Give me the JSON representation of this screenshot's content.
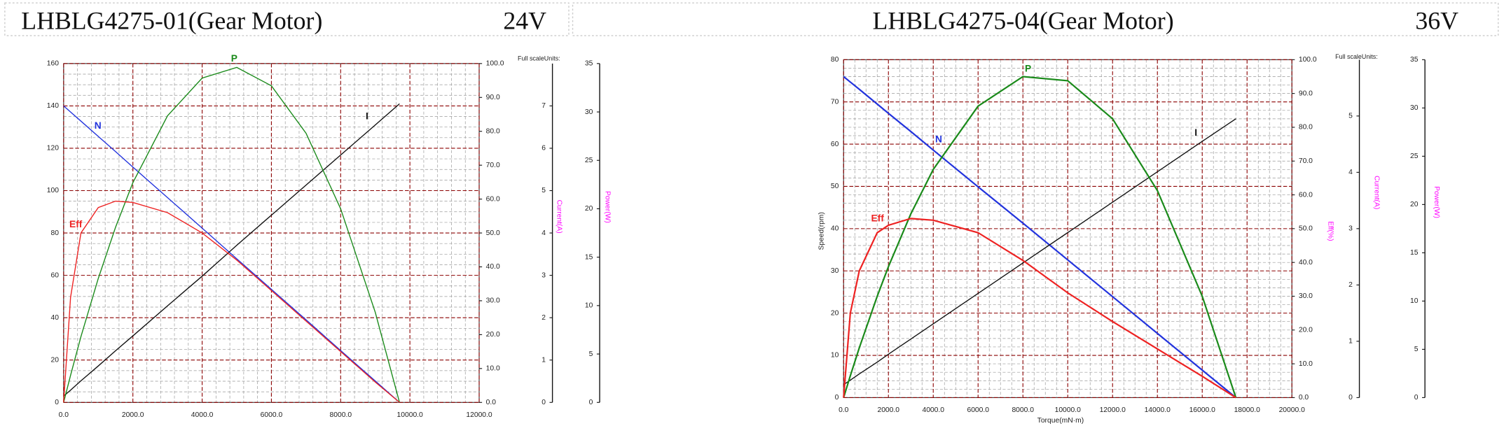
{
  "chart_data": [
    {
      "type": "line",
      "title": "LHBLG4275-01(Gear Motor)",
      "subtitle": "24V",
      "scale_note": "Full scaleUnits:",
      "x": [
        0,
        200,
        500,
        1000,
        1500,
        2000,
        3000,
        4000,
        5000,
        6000,
        7000,
        8000,
        9000,
        9700
      ],
      "xlim": [
        0,
        12000
      ],
      "xticks": [
        {
          "value": 0,
          "label": "0.0"
        },
        {
          "value": 2000,
          "label": "2000.0"
        },
        {
          "value": 4000,
          "label": "4000.0"
        },
        {
          "value": 6000,
          "label": "6000.0"
        },
        {
          "value": 8000,
          "label": "8000.0"
        },
        {
          "value": 10000,
          "label": "10000.0"
        },
        {
          "value": 12000,
          "label": "12000.0"
        }
      ],
      "ylim": [
        0,
        160
      ],
      "yticks": [
        0,
        20,
        40,
        60,
        80,
        100,
        120,
        140,
        160
      ],
      "y2lim": [
        0,
        100
      ],
      "y2ticks": [
        {
          "value": 0,
          "label": "0.0"
        },
        {
          "value": 10,
          "label": "10.0"
        },
        {
          "value": 20,
          "label": "20.0"
        },
        {
          "value": 30,
          "label": "30.0"
        },
        {
          "value": 40,
          "label": "40.0"
        },
        {
          "value": 50,
          "label": "50.0"
        },
        {
          "value": 60,
          "label": "60.0"
        },
        {
          "value": 70,
          "label": "70.0"
        },
        {
          "value": 80,
          "label": "80.0"
        },
        {
          "value": 90,
          "label": "90.0"
        },
        {
          "value": 100,
          "label": "100.0"
        }
      ],
      "y3label": "Current(A)",
      "y3lim": [
        0,
        8
      ],
      "y3ticks": [
        0,
        1,
        2,
        3,
        4,
        5,
        6,
        7
      ],
      "y4label": "Power(W)",
      "y4lim": [
        0,
        35
      ],
      "y4ticks": [
        0,
        5,
        10,
        15,
        20,
        25,
        30,
        35
      ],
      "grid": true,
      "series": [
        {
          "name": "N",
          "color": "#2233dd",
          "axis": "y",
          "values": [
            140,
            137.1,
            132.8,
            125.6,
            118.4,
            111.1,
            96.7,
            82.3,
            67.8,
            53.4,
            39.0,
            24.5,
            10.1,
            0
          ]
        },
        {
          "name": "I",
          "color": "#111111",
          "axis": "y3",
          "values": [
            0.15,
            0.29,
            0.51,
            0.86,
            1.22,
            1.57,
            2.28,
            2.98,
            3.71,
            4.42,
            5.13,
            5.84,
            6.55,
            7.05
          ]
        },
        {
          "name": "P",
          "color": "#1a8a1a",
          "axis": "y4",
          "values": [
            0,
            2.8,
            6.8,
            12.8,
            18.1,
            22.7,
            29.6,
            33.5,
            34.6,
            32.7,
            27.8,
            20.0,
            9.3,
            0
          ]
        },
        {
          "name": "Eff",
          "color": "#ee2222",
          "axis": "y2",
          "values": [
            0,
            31,
            50,
            57.5,
            59.4,
            59,
            56,
            50,
            42,
            33,
            24,
            15,
            6,
            0
          ]
        }
      ]
    },
    {
      "type": "line",
      "title": "LHBLG4275-04(Gear Motor)",
      "subtitle": "36V",
      "scale_note": "Full scaleUnits:",
      "x": [
        0,
        300,
        700,
        1500,
        2000,
        3000,
        4000,
        6000,
        8000,
        10000,
        12000,
        14000,
        16000,
        17500
      ],
      "xlabel": "Torque(mN·m)",
      "xlim": [
        0,
        20000
      ],
      "xticks": [
        {
          "value": 0,
          "label": "0.0"
        },
        {
          "value": 2000,
          "label": "2000.0"
        },
        {
          "value": 4000,
          "label": "4000.0"
        },
        {
          "value": 6000,
          "label": "6000.0"
        },
        {
          "value": 8000,
          "label": "8000.0"
        },
        {
          "value": 10000,
          "label": "10000.0"
        },
        {
          "value": 12000,
          "label": "12000.0"
        },
        {
          "value": 14000,
          "label": "14000.0"
        },
        {
          "value": 16000,
          "label": "16000.0"
        },
        {
          "value": 18000,
          "label": "18000.0"
        },
        {
          "value": 20000,
          "label": "20000.0"
        }
      ],
      "ylabel": "Speed(rpm)",
      "ylim": [
        0,
        80
      ],
      "yticks": [
        0,
        10,
        20,
        30,
        40,
        50,
        60,
        70,
        80
      ],
      "y2label": "Eff(%)",
      "y2lim": [
        0,
        100
      ],
      "y2ticks": [
        {
          "value": 0,
          "label": "0.0"
        },
        {
          "value": 10,
          "label": "10.0"
        },
        {
          "value": 20,
          "label": "20.0"
        },
        {
          "value": 30,
          "label": "30.0"
        },
        {
          "value": 40,
          "label": "40.0"
        },
        {
          "value": 50,
          "label": "50.0"
        },
        {
          "value": 60,
          "label": "60.0"
        },
        {
          "value": 70,
          "label": "70.0"
        },
        {
          "value": 80,
          "label": "80.0"
        },
        {
          "value": 90,
          "label": "90.0"
        },
        {
          "value": 100,
          "label": "100.0"
        }
      ],
      "y3label": "Current(A)",
      "y3lim": [
        0,
        6
      ],
      "y3ticks": [
        0,
        1,
        2,
        3,
        4,
        5
      ],
      "y4label": "Power(W)",
      "y4lim": [
        0,
        35
      ],
      "y4ticks": [
        0,
        5,
        10,
        15,
        20,
        25,
        30,
        35
      ],
      "grid": true,
      "series": [
        {
          "name": "N",
          "color": "#2233dd",
          "axis": "y",
          "values": [
            76,
            74.7,
            73.0,
            69.5,
            67.3,
            63.0,
            58.6,
            49.9,
            41.3,
            32.6,
            23.9,
            15.2,
            6.5,
            0
          ]
        },
        {
          "name": "I",
          "color": "#111111",
          "axis": "y3",
          "values": [
            0.23,
            0.31,
            0.42,
            0.63,
            0.77,
            1.04,
            1.31,
            1.85,
            2.39,
            2.93,
            3.47,
            4.01,
            4.55,
            4.95
          ]
        },
        {
          "name": "P",
          "color": "#1a8a1a",
          "axis": "y4",
          "values": [
            0,
            2.26,
            5.15,
            10.5,
            13.56,
            19.03,
            23.63,
            30.19,
            33.25,
            32.82,
            28.88,
            21.44,
            10.5,
            0
          ]
        },
        {
          "name": "Eff",
          "color": "#ee2222",
          "axis": "y2",
          "values": [
            0,
            25,
            37.5,
            48.8,
            51,
            53,
            52.5,
            48.8,
            40.6,
            31,
            22.5,
            14.4,
            6.3,
            0
          ]
        }
      ]
    }
  ]
}
